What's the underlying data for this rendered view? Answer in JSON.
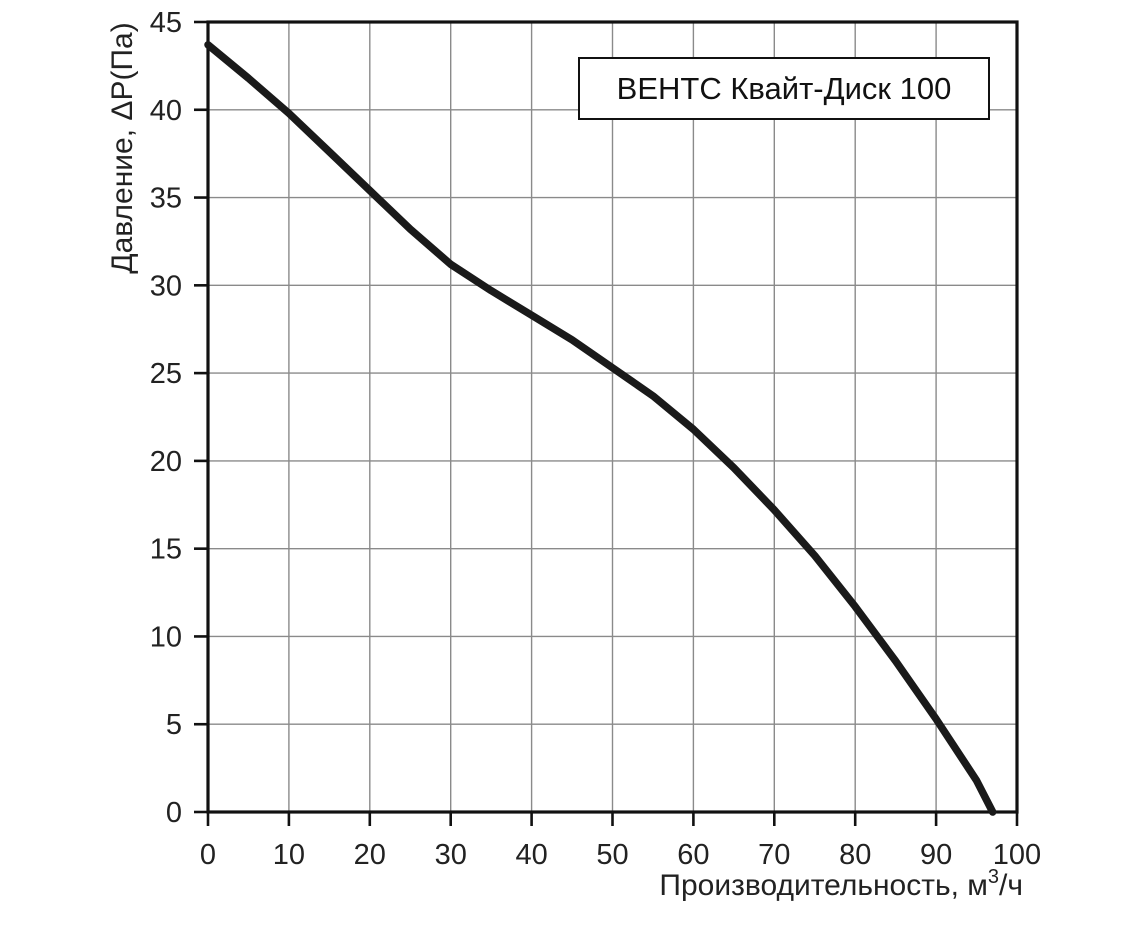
{
  "chart_data": {
    "type": "line",
    "title": "ВЕНТС Квайт-Диск 100",
    "xlabel": "Производительность, м³/ч",
    "xlabel_parts": {
      "pre": "Производительность, м",
      "sup": "3",
      "post": "/ч"
    },
    "ylabel": "Давление, ΔP(Па)",
    "xlim": [
      0,
      100
    ],
    "ylim": [
      0,
      45
    ],
    "xticks": [
      0,
      10,
      20,
      30,
      40,
      50,
      60,
      70,
      80,
      90,
      100
    ],
    "yticks": [
      0,
      5,
      10,
      15,
      20,
      25,
      30,
      35,
      40,
      45
    ],
    "grid": true,
    "legend_position": "none",
    "series": [
      {
        "name": "ВЕНТС Квайт-Диск 100",
        "points": [
          [
            0,
            43.7
          ],
          [
            5,
            41.8
          ],
          [
            10,
            39.8
          ],
          [
            15,
            37.6
          ],
          [
            20,
            35.4
          ],
          [
            25,
            33.2
          ],
          [
            30,
            31.2
          ],
          [
            35,
            29.7
          ],
          [
            40,
            28.3
          ],
          [
            45,
            26.9
          ],
          [
            50,
            25.3
          ],
          [
            55,
            23.7
          ],
          [
            60,
            21.8
          ],
          [
            65,
            19.6
          ],
          [
            70,
            17.2
          ],
          [
            75,
            14.6
          ],
          [
            80,
            11.7
          ],
          [
            85,
            8.6
          ],
          [
            90,
            5.3
          ],
          [
            95,
            1.8
          ],
          [
            97,
            0
          ]
        ]
      }
    ],
    "colors": {
      "curve": "#1a1a1a",
      "grid": "#8a8a8a",
      "frame": "#111111",
      "tick": "#111111",
      "text": "#222222",
      "background": "#ffffff"
    }
  }
}
